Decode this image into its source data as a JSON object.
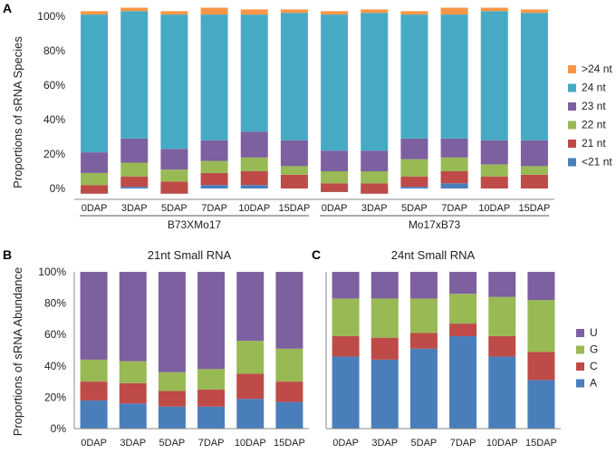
{
  "chart_data": [
    {
      "panel": "A",
      "type": "bar",
      "stacked": true,
      "title": "",
      "xlabel": "",
      "ylabel": "Proportions of sRNA Species",
      "ylim": [
        0,
        100
      ],
      "ytick_labels": [
        "0%",
        "20%",
        "40%",
        "60%",
        "80%",
        "100%"
      ],
      "categories": [
        "0DAP",
        "3DAP",
        "5DAP",
        "7DAP",
        "10DAP",
        "15DAP",
        "0DAP",
        "3DAP",
        "5DAP",
        "7DAP",
        "10DAP",
        "15DAP"
      ],
      "groups": [
        {
          "label": "B73XMo17",
          "start": 0,
          "end": 5
        },
        {
          "label": "Mo17xB73",
          "start": 6,
          "end": 11
        }
      ],
      "legend_position": "right",
      "series": [
        {
          "name": "<21 nt",
          "color": "#4a7ebb",
          "values": [
            -3,
            1,
            -3,
            2,
            2,
            0,
            -2,
            -3,
            1,
            3,
            0,
            0
          ]
        },
        {
          "name": "21 nt",
          "color": "#be4b48",
          "values": [
            5,
            6,
            7,
            7,
            8,
            8,
            5,
            6,
            6,
            7,
            7,
            8
          ]
        },
        {
          "name": "22 nt",
          "color": "#98b954",
          "values": [
            7,
            8,
            7,
            7,
            8,
            5,
            7,
            7,
            10,
            8,
            7,
            5
          ]
        },
        {
          "name": "23 nt",
          "color": "#7d60a0",
          "values": [
            12,
            14,
            12,
            12,
            15,
            15,
            12,
            12,
            12,
            11,
            14,
            15
          ]
        },
        {
          "name": "24 nt",
          "color": "#46aac5",
          "values": [
            80,
            74,
            78,
            73,
            68,
            74,
            79,
            80,
            72,
            72,
            75,
            74
          ]
        },
        {
          "name": ">24 nt",
          "color": "#f79646",
          "values": [
            2,
            2,
            2,
            4,
            3,
            2,
            2,
            2,
            2,
            4,
            2,
            2
          ]
        }
      ]
    },
    {
      "panel": "B",
      "type": "bar",
      "stacked": true,
      "title": "21nt Small RNA",
      "xlabel": "",
      "ylabel": "Proportions of sRNA Abundance",
      "ylim": [
        0,
        100
      ],
      "ytick_labels": [
        "0%",
        "20%",
        "40%",
        "60%",
        "80%",
        "100%"
      ],
      "categories": [
        "0DAP",
        "3DAP",
        "5DAP",
        "7DAP",
        "10DAP",
        "15DAP"
      ],
      "series": [
        {
          "name": "A",
          "color": "#4a7ebb",
          "values": [
            18,
            16,
            14,
            14,
            19,
            17
          ]
        },
        {
          "name": "C",
          "color": "#be4b48",
          "values": [
            12,
            13,
            10,
            11,
            16,
            13
          ]
        },
        {
          "name": "G",
          "color": "#98b954",
          "values": [
            14,
            14,
            12,
            13,
            21,
            21
          ]
        },
        {
          "name": "U",
          "color": "#7d60a0",
          "values": [
            56,
            57,
            64,
            62,
            44,
            49
          ]
        }
      ]
    },
    {
      "panel": "C",
      "type": "bar",
      "stacked": true,
      "title": "24nt Small RNA",
      "xlabel": "",
      "ylabel": "",
      "ylim": [
        0,
        100
      ],
      "categories": [
        "0DAP",
        "3DAP",
        "5DAP",
        "7DAP",
        "10DAP",
        "15DAP"
      ],
      "legend_position": "right",
      "series": [
        {
          "name": "A",
          "color": "#4a7ebb",
          "values": [
            46,
            44,
            51,
            59,
            46,
            31
          ]
        },
        {
          "name": "C",
          "color": "#be4b48",
          "values": [
            13,
            14,
            10,
            8,
            13,
            18
          ]
        },
        {
          "name": "G",
          "color": "#98b954",
          "values": [
            24,
            25,
            22,
            19,
            25,
            33
          ]
        },
        {
          "name": "U",
          "color": "#7d60a0",
          "values": [
            17,
            17,
            17,
            14,
            16,
            18
          ]
        }
      ]
    }
  ]
}
